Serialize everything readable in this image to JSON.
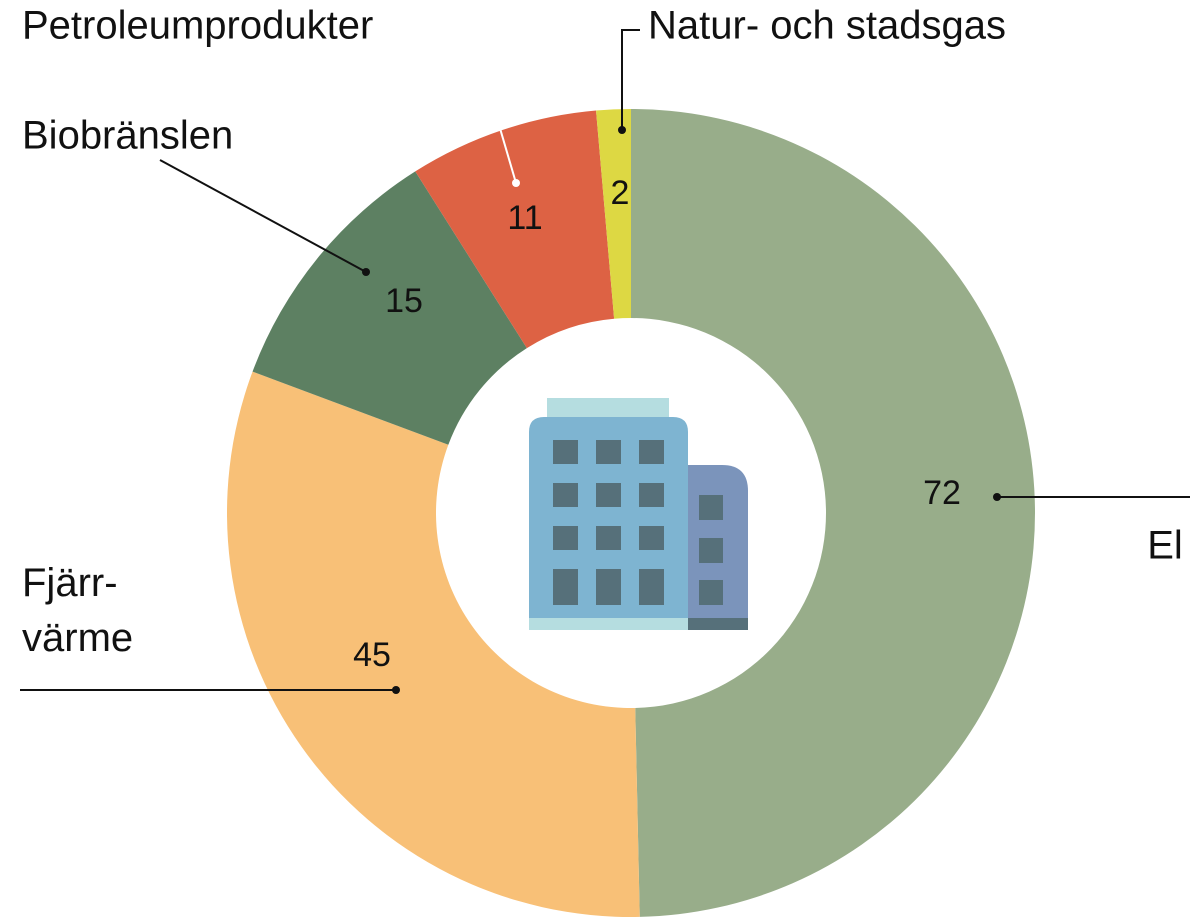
{
  "chart_data": {
    "type": "donut",
    "categories": [
      "El",
      "Fjärr-\nvärme",
      "Biobränslen",
      "Petroleumprodukter",
      "Natur- och stadsgas"
    ],
    "values": [
      72,
      45,
      15,
      11,
      2
    ],
    "colors": [
      "#98ad8a",
      "#f8c077",
      "#5d8062",
      "#dd6244",
      "#ddd843"
    ]
  }
}
